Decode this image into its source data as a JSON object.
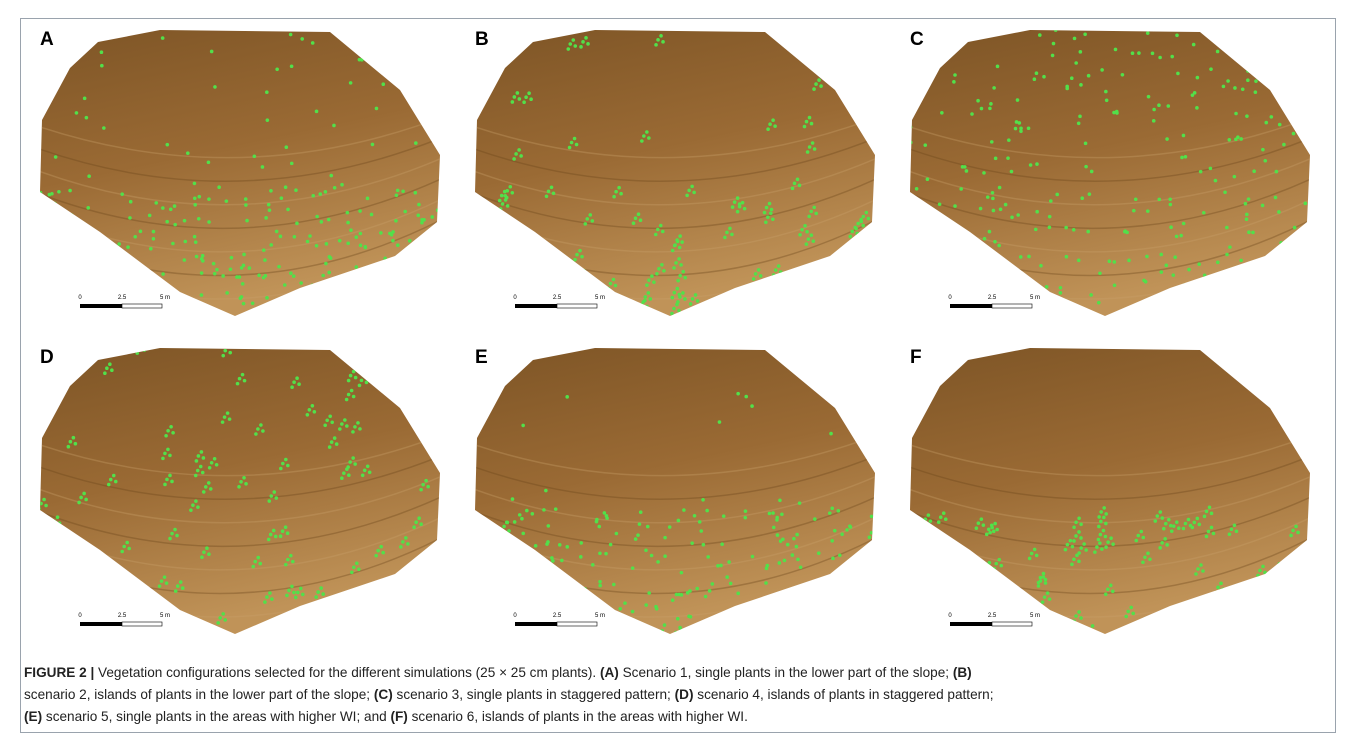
{
  "panels": [
    {
      "label": "A",
      "scale": [
        "0",
        "2.5",
        "5 m"
      ]
    },
    {
      "label": "B",
      "scale": [
        "0",
        "2.5",
        "5 m"
      ]
    },
    {
      "label": "C",
      "scale": [
        "0",
        "2.5",
        "5 m"
      ]
    },
    {
      "label": "D",
      "scale": [
        "0",
        "2.5",
        "5 m"
      ]
    },
    {
      "label": "E",
      "scale": [
        "0",
        "2.5",
        "5 m"
      ]
    },
    {
      "label": "F",
      "scale": [
        "0",
        "2.5",
        "5 m"
      ]
    }
  ],
  "caption": {
    "lines": [
      [
        {
          "text": "FIGURE 2 |",
          "bold": true
        },
        {
          "text": " Vegetation configurations selected for the different simulations (25 × 25 cm plants). ",
          "bold": false
        },
        {
          "text": "(A)",
          "bold": true
        },
        {
          "text": " Scenario 1, single plants in the lower part of the slope; ",
          "bold": false
        },
        {
          "text": "(B)",
          "bold": true
        }
      ],
      [
        {
          "text": "scenario 2, islands of plants in the lower part of the slope; ",
          "bold": false
        },
        {
          "text": "(C)",
          "bold": true
        },
        {
          "text": " scenario 3, single plants in staggered pattern; ",
          "bold": false
        },
        {
          "text": "(D)",
          "bold": true
        },
        {
          "text": " scenario 4, islands of plants in staggered pattern;",
          "bold": false
        }
      ],
      [
        {
          "text": "(E)",
          "bold": true
        },
        {
          "text": " scenario 5, single plants in the areas with higher WI; and ",
          "bold": false
        },
        {
          "text": "(F)",
          "bold": true
        },
        {
          "text": " scenario 6, islands of plants in the areas with higher WI.",
          "bold": false
        }
      ]
    ]
  }
}
